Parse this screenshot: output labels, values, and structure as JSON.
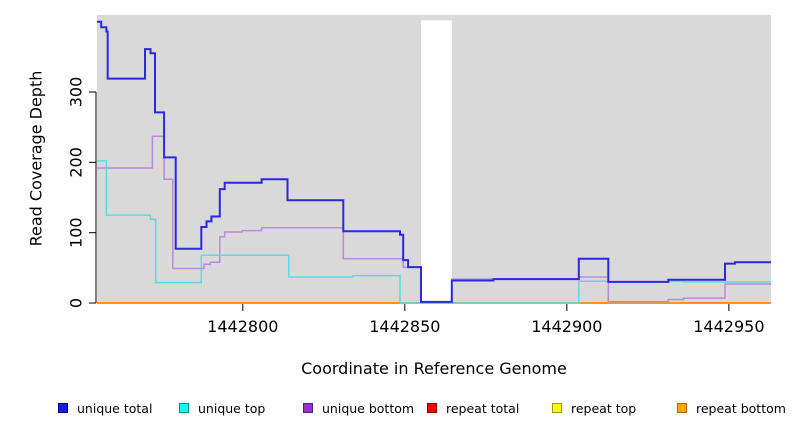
{
  "chart_data": {
    "type": "line",
    "subtype": "step-after-coverage-plot",
    "title": "",
    "xlabel": "Coordinate in Reference Genome",
    "ylabel": "Read Coverage Depth",
    "xlim": [
      1442755,
      1442963
    ],
    "ylim": [
      0,
      409.5
    ],
    "x_ticks": [
      1442800,
      1442850,
      1442900,
      1442950
    ],
    "y_ticks": [
      0,
      100,
      200,
      300
    ],
    "plot_bg_color": "#d9d9d9",
    "masked_region": {
      "x0": 1442855,
      "x1": 1442864.5,
      "y_top": 402,
      "color": "#ffffff"
    },
    "series": [
      {
        "name": "repeat total",
        "color": "#cc2222",
        "stroke_width": 1.2,
        "points": [
          [
            1442755,
            0
          ]
        ]
      },
      {
        "name": "repeat top",
        "color": "#ffff00",
        "stroke_width": 1.2,
        "points": [
          [
            1442755,
            0
          ]
        ]
      },
      {
        "name": "repeat bottom",
        "color": "#ff9420",
        "stroke_width": 2,
        "points": [
          [
            1442755,
            0
          ]
        ]
      },
      {
        "name": "unique bottom",
        "color": "#bb88dd",
        "stroke_width": 1.5,
        "points": [
          [
            1442755,
            192
          ],
          [
            1442772.1,
            237
          ],
          [
            1442775.7,
            176
          ],
          [
            1442778.4,
            49
          ],
          [
            1442788,
            55
          ],
          [
            1442790,
            58
          ],
          [
            1442792.9,
            94
          ],
          [
            1442794.4,
            101
          ],
          [
            1442799.8,
            103
          ],
          [
            1442805.8,
            107
          ],
          [
            1442831,
            63
          ],
          [
            1442849.5,
            51
          ],
          [
            1442855,
            1
          ],
          [
            1442864.5,
            34
          ],
          [
            1442903.7,
            37
          ],
          [
            1442912.8,
            2
          ],
          [
            1442931.3,
            5
          ],
          [
            1442936,
            7
          ],
          [
            1442948.8,
            27
          ]
        ]
      },
      {
        "name": "unique top",
        "color": "#55dde6",
        "stroke_width": 1.5,
        "points": [
          [
            1442755,
            202
          ],
          [
            1442757.9,
            125
          ],
          [
            1442771.5,
            119
          ],
          [
            1442773.1,
            29
          ],
          [
            1442787.2,
            68
          ],
          [
            1442814.2,
            37
          ],
          [
            1442834,
            39
          ],
          [
            1442848.5,
            0
          ],
          [
            1442903.7,
            31
          ],
          [
            1442912.8,
            30
          ],
          [
            1442931.3,
            31
          ],
          [
            1442936,
            30
          ]
        ]
      },
      {
        "name": "unique total",
        "color": "#2929dd",
        "stroke_width": 2,
        "points": [
          [
            1442755,
            400
          ],
          [
            1442756.3,
            392
          ],
          [
            1442757.9,
            386
          ],
          [
            1442758.3,
            319
          ],
          [
            1442769.8,
            361
          ],
          [
            1442771.5,
            355
          ],
          [
            1442772.9,
            271
          ],
          [
            1442775.7,
            207
          ],
          [
            1442779.3,
            77
          ],
          [
            1442787.2,
            108
          ],
          [
            1442788.8,
            116
          ],
          [
            1442790.3,
            123
          ],
          [
            1442792.9,
            162
          ],
          [
            1442794.4,
            171
          ],
          [
            1442805.8,
            176
          ],
          [
            1442813.8,
            146
          ],
          [
            1442831,
            102
          ],
          [
            1442848.5,
            97
          ],
          [
            1442849.5,
            61
          ],
          [
            1442851,
            51
          ],
          [
            1442855,
            1.5
          ],
          [
            1442864.5,
            32
          ],
          [
            1442877.3,
            34
          ],
          [
            1442903.7,
            63
          ],
          [
            1442912.8,
            30
          ],
          [
            1442931.3,
            33
          ],
          [
            1442948.8,
            56
          ],
          [
            1442951.9,
            58
          ]
        ]
      }
    ],
    "legend_position": "bottom"
  },
  "legend": {
    "items": [
      {
        "label": "unique total",
        "fill": "#1a1ae6",
        "border": "#000099"
      },
      {
        "label": "unique top",
        "fill": "#00ffff",
        "border": "#008b8b"
      },
      {
        "label": "unique bottom",
        "fill": "#9932cc",
        "border": "#5c1a80"
      },
      {
        "label": "repeat total",
        "fill": "#ff0000",
        "border": "#8b0000"
      },
      {
        "label": "repeat top",
        "fill": "#ffff00",
        "border": "#999900"
      },
      {
        "label": "repeat bottom",
        "fill": "#ffa500",
        "border": "#b36b00"
      }
    ]
  },
  "axis": {
    "x_title": "Coordinate in Reference Genome",
    "y_title": "Read Coverage Depth"
  }
}
